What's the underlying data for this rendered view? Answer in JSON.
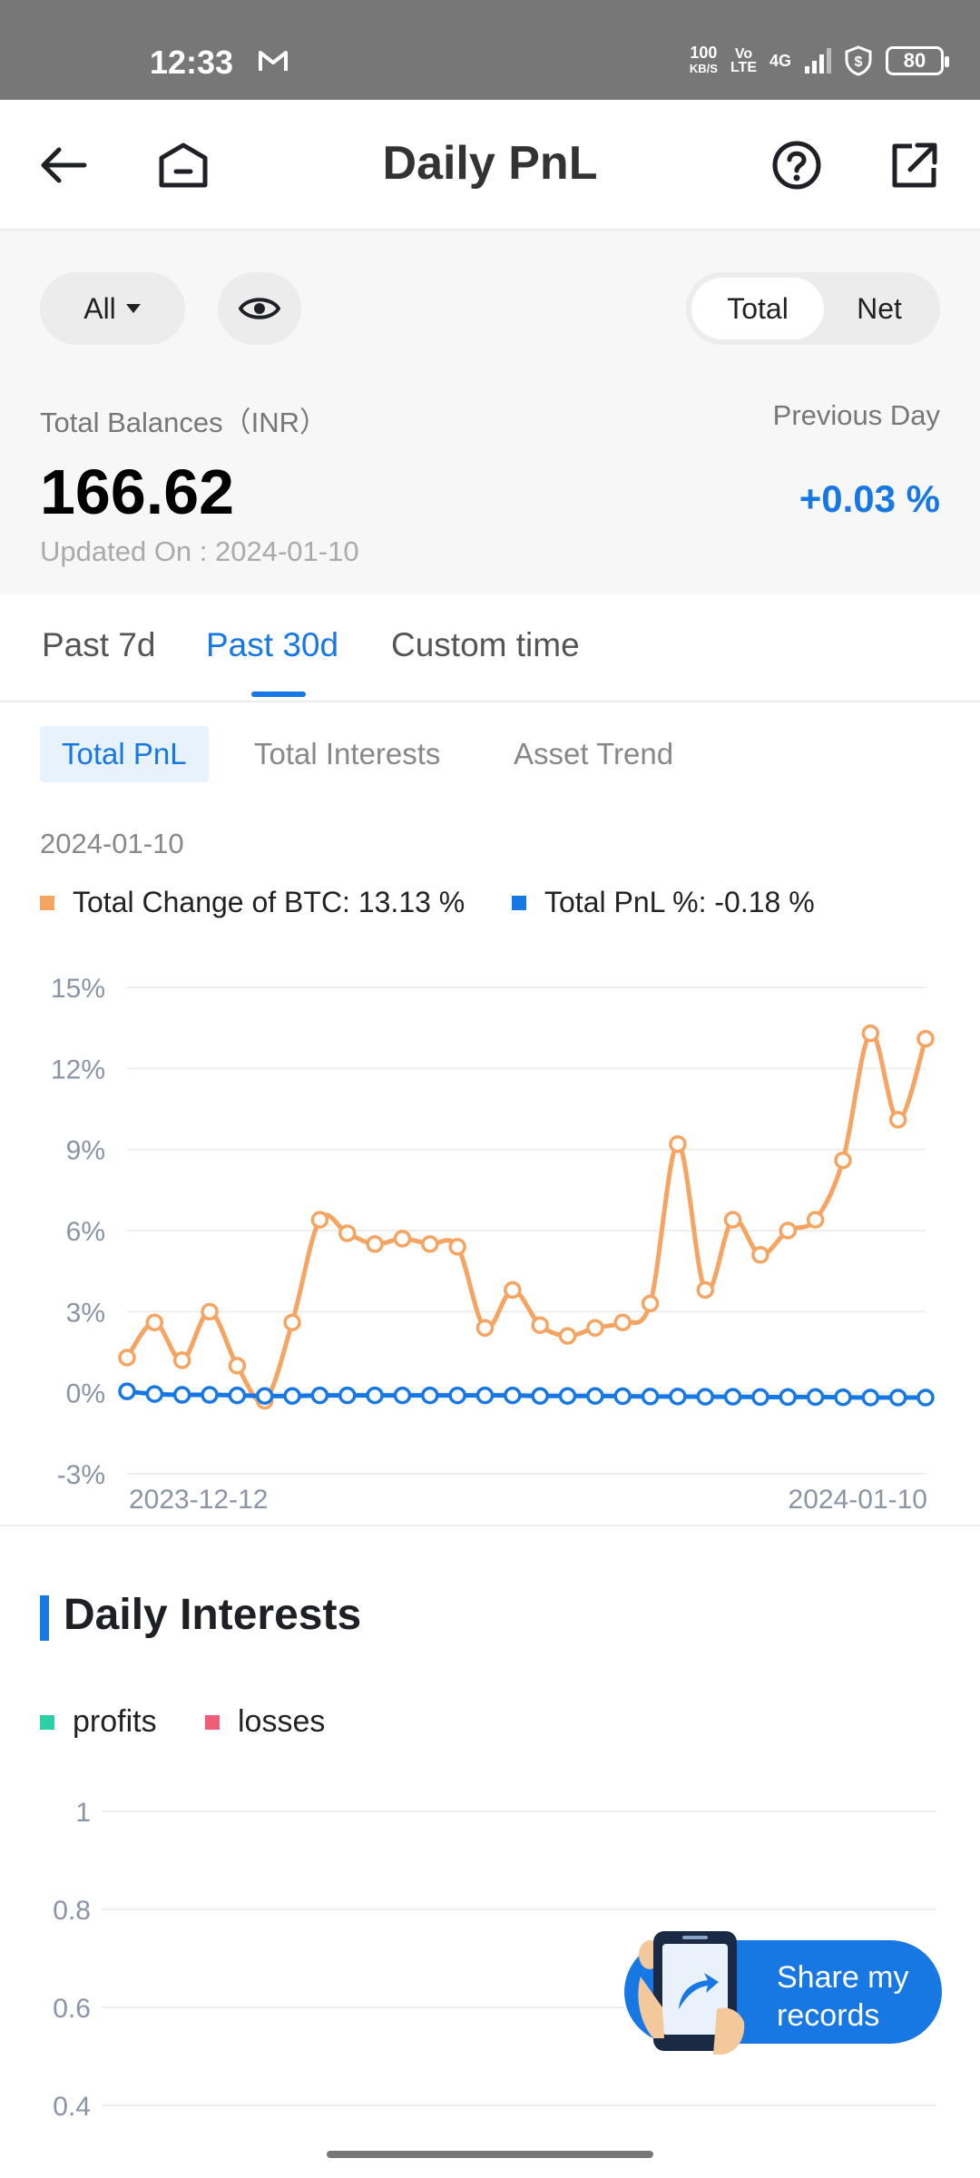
{
  "status_bar": {
    "time": "12:33",
    "speed_value": "100",
    "speed_unit": "KB/S",
    "volte_top": "Vo",
    "volte_bottom": "LTE",
    "network": "4G",
    "battery": "80"
  },
  "header": {
    "title": "Daily PnL"
  },
  "summary": {
    "filter_label": "All",
    "toggle": {
      "total": "Total",
      "net": "Net"
    },
    "balance_label": "Total Balances（INR）",
    "balance_value": "166.62",
    "previous_day_label": "Previous Day",
    "previous_day_value": "+0.03 %",
    "updated_on": "Updated On : 2024-01-10"
  },
  "period_tabs": [
    "Past 7d",
    "Past 30d",
    "Custom time"
  ],
  "chart_tabs": [
    "Total PnL",
    "Total Interests",
    "Asset Trend"
  ],
  "chart_date": "2024-01-10",
  "legend": {
    "btc": "Total Change of BTC: 13.13 %",
    "pnl": "Total PnL %: -0.18 %"
  },
  "colors": {
    "accent": "#1777e3",
    "btc_line": "#f5a462",
    "pnl_line": "#1777e3",
    "profits": "#2dcfa5",
    "losses": "#ef5d78"
  },
  "chart_data": {
    "type": "line",
    "x_start_label": "2023-12-12",
    "x_end_label": "2024-01-10",
    "ytick_labels": [
      "15%",
      "12%",
      "9%",
      "6%",
      "3%",
      "0%",
      "-3%"
    ],
    "ylim": [
      -3,
      15
    ],
    "grid": true,
    "series": [
      {
        "name": "Total Change of BTC",
        "values": [
          1.3,
          2.6,
          1.2,
          3.0,
          1.0,
          -0.3,
          2.6,
          6.4,
          5.9,
          5.5,
          5.7,
          5.5,
          5.4,
          2.4,
          3.8,
          2.5,
          2.1,
          2.4,
          2.6,
          3.3,
          9.2,
          3.8,
          6.4,
          5.1,
          6.0,
          6.4,
          8.6,
          13.3,
          10.1,
          13.1
        ]
      },
      {
        "name": "Total PnL %",
        "values": [
          0.05,
          -0.05,
          -0.08,
          -0.08,
          -0.1,
          -0.12,
          -0.12,
          -0.1,
          -0.1,
          -0.1,
          -0.1,
          -0.1,
          -0.1,
          -0.1,
          -0.1,
          -0.12,
          -0.12,
          -0.12,
          -0.13,
          -0.14,
          -0.14,
          -0.15,
          -0.15,
          -0.16,
          -0.16,
          -0.16,
          -0.17,
          -0.18,
          -0.18,
          -0.18
        ]
      }
    ]
  },
  "daily_interests": {
    "title": "Daily Interests",
    "legend_profits": "profits",
    "legend_losses": "losses",
    "chart_data": {
      "type": "bar",
      "ytick_labels": [
        "1",
        "0.8",
        "0.6",
        "0.4"
      ],
      "ylim": [
        0.4,
        1
      ],
      "grid": true
    }
  },
  "share_button": {
    "label": "Share my records"
  }
}
